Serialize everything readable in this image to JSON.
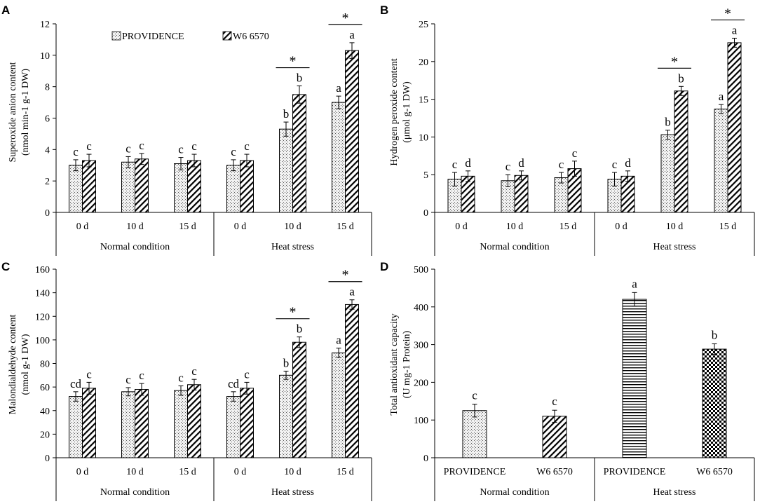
{
  "legend": {
    "series": [
      "PROVIDENCE",
      "W6 6570"
    ]
  },
  "chart_data": [
    {
      "panel": "A",
      "type": "bar",
      "ylabel_line1": "Superoxide anion content",
      "ylabel_line2": "(nmol min-1 g-1 DW)",
      "ylim": [
        0,
        12
      ],
      "yticks": [
        0,
        2,
        4,
        6,
        8,
        10,
        12
      ],
      "categories": [
        "0 d",
        "10 d",
        "15 d",
        "0 d",
        "10 d",
        "15 d"
      ],
      "groups": [
        {
          "label": "Normal condition",
          "span": 3
        },
        {
          "label": "Heat stress",
          "span": 3
        }
      ],
      "series": [
        {
          "name": "PROVIDENCE",
          "pattern": "dots",
          "values": [
            3.0,
            3.2,
            3.1,
            3.0,
            5.3,
            7.0
          ],
          "errors": [
            0.35,
            0.35,
            0.4,
            0.35,
            0.45,
            0.4
          ],
          "letters": [
            "c",
            "c",
            "c",
            "c",
            "b",
            "a"
          ]
        },
        {
          "name": "W6 6570",
          "pattern": "diag",
          "values": [
            3.3,
            3.4,
            3.3,
            3.3,
            7.5,
            10.3
          ],
          "errors": [
            0.4,
            0.35,
            0.4,
            0.4,
            0.55,
            0.5
          ],
          "letters": [
            "c",
            "c",
            "c",
            "c",
            "b",
            "a"
          ]
        }
      ],
      "stars": [
        4,
        5
      ],
      "star_label": "*"
    },
    {
      "panel": "B",
      "type": "bar",
      "ylabel_line1": "Hydrogen peroxide  content",
      "ylabel_line2": "(μmol g-1 DW)",
      "ylim": [
        0,
        25
      ],
      "yticks": [
        0,
        5,
        10,
        15,
        20,
        25
      ],
      "categories": [
        "0 d",
        "10 d",
        "15 d",
        "0 d",
        "10 d",
        "15 d"
      ],
      "groups": [
        {
          "label": "Normal condition",
          "span": 3
        },
        {
          "label": "Heat stress",
          "span": 3
        }
      ],
      "series": [
        {
          "name": "PROVIDENCE",
          "pattern": "dots",
          "values": [
            4.4,
            4.2,
            4.6,
            4.4,
            10.3,
            13.7
          ],
          "errors": [
            0.9,
            0.8,
            0.7,
            0.9,
            0.6,
            0.6
          ],
          "letters": [
            "c",
            "c",
            "c",
            "c",
            "b",
            "a"
          ]
        },
        {
          "name": "W6 6570",
          "pattern": "diag",
          "values": [
            4.8,
            4.9,
            5.8,
            4.8,
            16.1,
            22.5
          ],
          "errors": [
            0.7,
            0.6,
            1.0,
            0.7,
            0.6,
            0.6
          ],
          "letters": [
            "d",
            "d",
            "c",
            "d",
            "b",
            "a"
          ]
        }
      ],
      "stars": [
        4,
        5
      ],
      "star_label": "*"
    },
    {
      "panel": "C",
      "type": "bar",
      "ylabel_line1": "Malondialdehyde content",
      "ylabel_line2": "(nmol g-1 DW)",
      "ylim": [
        0,
        160
      ],
      "yticks": [
        0,
        20,
        40,
        60,
        80,
        100,
        120,
        140,
        160
      ],
      "categories": [
        "0 d",
        "10 d",
        "15 d",
        "0 d",
        "10 d",
        "15 d"
      ],
      "groups": [
        {
          "label": "Normal condition",
          "span": 3
        },
        {
          "label": "Heat stress",
          "span": 3
        }
      ],
      "series": [
        {
          "name": "PROVIDENCE",
          "pattern": "dots",
          "values": [
            52,
            56,
            57,
            52,
            70,
            89
          ],
          "errors": [
            4,
            3.5,
            4,
            4,
            3.5,
            4
          ],
          "letters": [
            "cd",
            "c",
            "c",
            "cd",
            "b",
            "a"
          ]
        },
        {
          "name": "W6 6570",
          "pattern": "diag",
          "values": [
            59,
            58,
            62,
            59,
            98,
            130
          ],
          "errors": [
            5,
            5,
            4.5,
            5,
            4.5,
            4
          ],
          "letters": [
            "c",
            "c",
            "c",
            "c",
            "b",
            "a"
          ]
        }
      ],
      "stars": [
        4,
        5
      ],
      "star_label": "*"
    },
    {
      "panel": "D",
      "type": "bar",
      "ylabel_line1": "Total antioxidant capacity",
      "ylabel_line2": "(U mg-1 Protein)",
      "ylim": [
        0,
        500
      ],
      "yticks": [
        0,
        100,
        200,
        300,
        400,
        500
      ],
      "categories": [
        "PROVIDENCE",
        "W6 6570",
        "PROVIDENCE",
        "W6 6570"
      ],
      "groups": [
        {
          "label": "Normal condition",
          "span": 2
        },
        {
          "label": "Heat stress",
          "span": 2
        }
      ],
      "bars": [
        {
          "value": 125,
          "error": 17,
          "letter": "c",
          "pattern": "dots"
        },
        {
          "value": 110,
          "error": 16,
          "letter": "c",
          "pattern": "diag"
        },
        {
          "value": 420,
          "error": 18,
          "letter": "a",
          "pattern": "hlines"
        },
        {
          "value": 288,
          "error": 14,
          "letter": "b",
          "pattern": "check"
        }
      ]
    }
  ]
}
